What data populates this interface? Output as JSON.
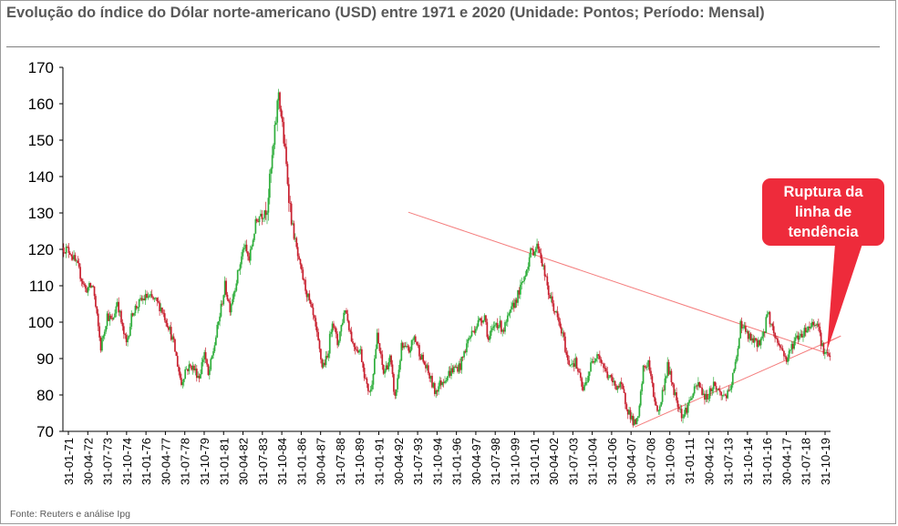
{
  "title": "Evolução do índice do Dólar norte-americano (USD) entre 1971 e 2020 (Unidade: Pontos; Período: Mensal)",
  "source": "Fonte: Reuters e análise Ipg",
  "callout": "Ruptura da linha de tendência",
  "colors": {
    "up": "#2fae3c",
    "down": "#c8202f",
    "trendline": "#f47c7c",
    "callout_bg": "#ee2b3b",
    "axis": "#000000"
  },
  "chart_data": {
    "type": "candlestick",
    "title": "Evolução do índice do Dólar norte-americano (USD) entre 1971 e 2020 (Unidade: Pontos; Período: Mensal)",
    "ylim": [
      70,
      170
    ],
    "yticks": [
      70,
      80,
      90,
      100,
      110,
      120,
      130,
      140,
      150,
      160,
      170
    ],
    "xlim": [
      "1971-01",
      "2020-12"
    ],
    "xticks": [
      "31-01-71",
      "30-04-72",
      "31-07-73",
      "31-10-74",
      "31-01-76",
      "30-04-77",
      "31-07-78",
      "31-10-79",
      "31-01-81",
      "30-04-82",
      "31-07-83",
      "31-10-84",
      "31-01-86",
      "30-04-87",
      "31-07-88",
      "31-10-89",
      "31-01-91",
      "30-04-92",
      "31-07-93",
      "31-10-94",
      "31-01-96",
      "30-04-97",
      "31-07-98",
      "31-10-99",
      "31-01-01",
      "30-04-02",
      "31-07-03",
      "31-10-04",
      "31-01-06",
      "30-04-07",
      "31-07-08",
      "31-10-09",
      "31-01-11",
      "30-04-12",
      "31-07-13",
      "31-10-14",
      "31-01-16",
      "30-04-17",
      "31-07-18",
      "31-10-19"
    ],
    "grid": false,
    "legend": "none",
    "series": [
      {
        "points": [
          [
            "1971-01",
            120.5
          ],
          [
            "1971-07",
            119.5
          ],
          [
            "1972-01",
            115
          ],
          [
            "1972-07",
            109
          ],
          [
            "1973-01",
            110
          ],
          [
            "1973-03",
            104
          ],
          [
            "1973-07",
            93
          ],
          [
            "1973-12",
            102
          ],
          [
            "1974-04",
            100
          ],
          [
            "1974-08",
            106
          ],
          [
            "1974-12",
            98
          ],
          [
            "1975-03",
            94
          ],
          [
            "1975-08",
            103
          ],
          [
            "1976-03",
            106
          ],
          [
            "1976-07",
            107
          ],
          [
            "1977-01",
            106
          ],
          [
            "1977-06",
            104
          ],
          [
            "1977-12",
            99
          ],
          [
            "1978-04",
            94
          ],
          [
            "1978-10",
            83
          ],
          [
            "1979-01",
            87
          ],
          [
            "1979-06",
            88
          ],
          [
            "1979-12",
            85
          ],
          [
            "1980-04",
            92
          ],
          [
            "1980-07",
            85
          ],
          [
            "1980-12",
            94
          ],
          [
            "1981-03",
            100
          ],
          [
            "1981-08",
            110
          ],
          [
            "1981-12",
            104
          ],
          [
            "1982-04",
            110
          ],
          [
            "1982-11",
            121
          ],
          [
            "1983-03",
            117
          ],
          [
            "1983-08",
            127
          ],
          [
            "1983-12",
            130
          ],
          [
            "1984-05",
            132
          ],
          [
            "1984-10",
            148
          ],
          [
            "1985-02",
            163.5
          ],
          [
            "1985-06",
            150
          ],
          [
            "1985-12",
            128
          ],
          [
            "1986-06",
            116
          ],
          [
            "1986-12",
            108
          ],
          [
            "1987-06",
            100
          ],
          [
            "1987-12",
            88
          ],
          [
            "1988-04",
            90
          ],
          [
            "1988-08",
            101
          ],
          [
            "1988-12",
            94
          ],
          [
            "1989-06",
            104
          ],
          [
            "1989-12",
            94
          ],
          [
            "1990-06",
            92
          ],
          [
            "1990-11",
            82
          ],
          [
            "1991-02",
            81
          ],
          [
            "1991-07",
            96
          ],
          [
            "1991-12",
            86
          ],
          [
            "1992-05",
            90
          ],
          [
            "1992-09",
            79
          ],
          [
            "1993-02",
            93
          ],
          [
            "1993-08",
            92
          ],
          [
            "1993-12",
            96
          ],
          [
            "1994-06",
            90
          ],
          [
            "1994-11",
            86
          ],
          [
            "1995-04",
            81
          ],
          [
            "1995-10",
            84
          ],
          [
            "1996-06",
            87
          ],
          [
            "1996-12",
            88
          ],
          [
            "1997-06",
            95
          ],
          [
            "1997-12",
            99
          ],
          [
            "1998-07",
            102
          ],
          [
            "1998-10",
            95
          ],
          [
            "1999-04",
            100
          ],
          [
            "1999-10",
            98
          ],
          [
            "2000-06",
            105
          ],
          [
            "2000-12",
            110
          ],
          [
            "2001-07",
            119
          ],
          [
            "2002-01",
            121
          ],
          [
            "2002-03",
            118
          ],
          [
            "2002-09",
            108
          ],
          [
            "2003-03",
            102
          ],
          [
            "2003-09",
            95
          ],
          [
            "2003-12",
            89
          ],
          [
            "2004-06",
            89
          ],
          [
            "2004-12",
            81
          ],
          [
            "2005-06",
            88
          ],
          [
            "2005-11",
            92
          ],
          [
            "2006-06",
            86
          ],
          [
            "2006-12",
            83
          ],
          [
            "2007-06",
            82
          ],
          [
            "2007-11",
            76
          ],
          [
            "2008-04",
            72
          ],
          [
            "2008-07",
            73
          ],
          [
            "2008-11",
            87
          ],
          [
            "2009-03",
            89
          ],
          [
            "2009-07",
            80
          ],
          [
            "2009-11",
            75
          ],
          [
            "2010-06",
            88
          ],
          [
            "2010-12",
            80
          ],
          [
            "2011-06",
            74
          ],
          [
            "2011-12",
            79
          ],
          [
            "2012-06",
            83
          ],
          [
            "2012-12",
            79
          ],
          [
            "2013-06",
            83
          ],
          [
            "2013-12",
            80
          ],
          [
            "2014-06",
            80
          ],
          [
            "2014-12",
            90
          ],
          [
            "2015-03",
            100
          ],
          [
            "2015-09",
            96
          ],
          [
            "2016-03",
            94
          ],
          [
            "2016-09",
            96
          ],
          [
            "2016-12",
            103
          ],
          [
            "2017-06",
            96
          ],
          [
            "2017-12",
            92
          ],
          [
            "2018-03",
            89.5
          ],
          [
            "2018-09",
            95
          ],
          [
            "2019-03",
            97
          ],
          [
            "2019-09",
            99
          ],
          [
            "2020-03",
            100.5
          ],
          [
            "2020-07",
            93
          ],
          [
            "2020-12",
            90
          ]
        ]
      }
    ],
    "trendlines": [
      {
        "from": [
          "1993-07",
          130.2
        ],
        "to": [
          "2020-09",
          91.6
        ]
      },
      {
        "from": [
          "2008-04",
          71.2
        ],
        "to": [
          "2021-09",
          96.2
        ]
      },
      {
        "from": [
          "2021-09",
          96.2
        ],
        "to": [
          "2020-08",
          94
        ]
      }
    ]
  }
}
